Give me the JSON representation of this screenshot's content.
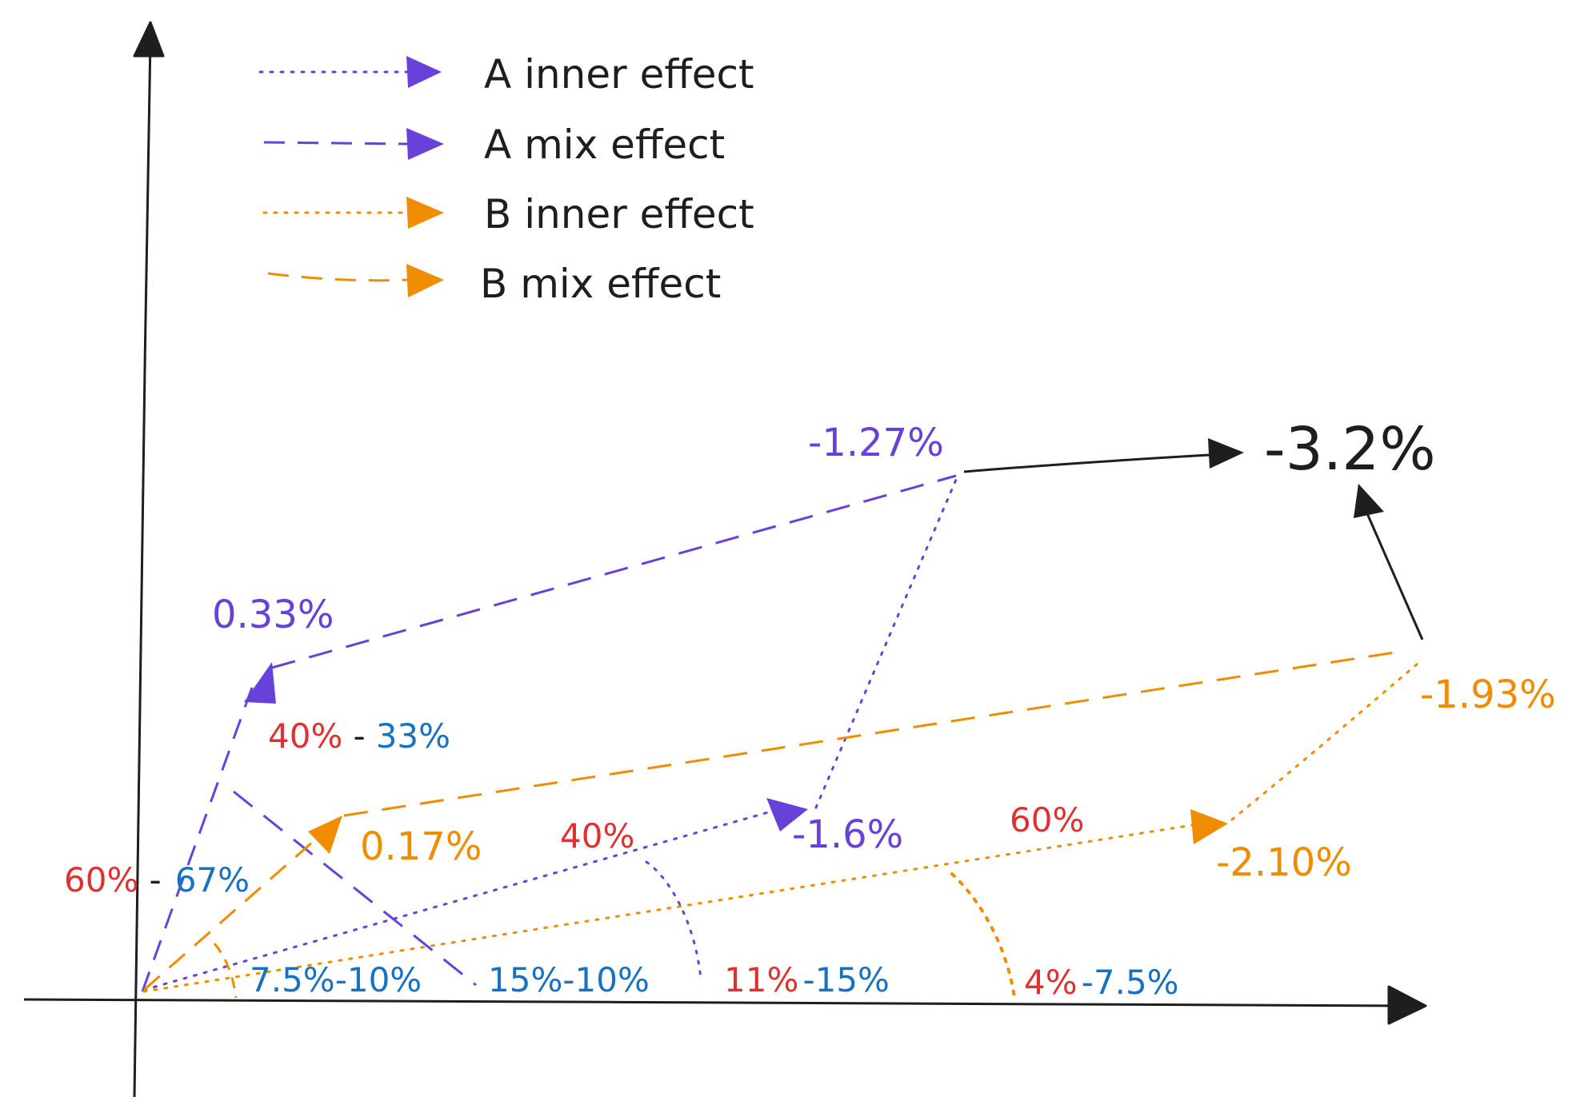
{
  "colors": {
    "a_color": "#6741d9",
    "b_color": "#f08c00",
    "ink": "#1e1e1e",
    "red_label": "#e03131",
    "blue_label": "#1971c2"
  },
  "legend": [
    {
      "label": "A inner effect",
      "color": "#6741d9",
      "style": "dotted"
    },
    {
      "label": "A mix effect",
      "color": "#6741d9",
      "style": "dashed"
    },
    {
      "label": "B inner effect",
      "color": "#f08c00",
      "style": "dotted"
    },
    {
      "label": "B mix effect",
      "color": "#f08c00",
      "style": "dashed"
    }
  ],
  "values": {
    "a_mix_start": "0.33%",
    "a_total": "-1.27%",
    "a_inner": "-1.6%",
    "b_mix_start": "0.17%",
    "b_inner": "-2.10%",
    "b_total": "-1.93%",
    "grand_total": "-3.2%"
  },
  "shares": {
    "a_left_red": "60%",
    "a_left_sep": "-",
    "a_left_blue": "67%",
    "a_top_red": "40%",
    "a_top_sep": "-",
    "a_top_blue": "33%",
    "a_inner_upper_red": "40%",
    "b_inner_upper_red": "60%",
    "bottom_1": "7.5%-10%",
    "bottom_2": "15%-10%",
    "bottom_3_red": "11%",
    "bottom_3_blue": "-15%",
    "bottom_4_red": "4%",
    "bottom_4_blue": "-7.5%"
  }
}
